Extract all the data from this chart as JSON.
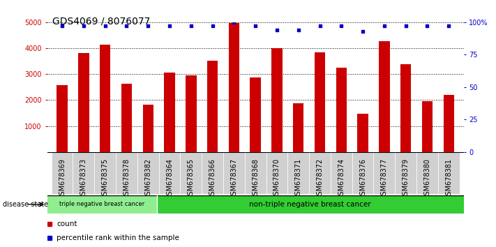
{
  "title": "GDS4069 / 8076077",
  "categories": [
    "GSM678369",
    "GSM678373",
    "GSM678375",
    "GSM678378",
    "GSM678382",
    "GSM678364",
    "GSM678365",
    "GSM678366",
    "GSM678367",
    "GSM678368",
    "GSM678370",
    "GSM678371",
    "GSM678372",
    "GSM678374",
    "GSM678376",
    "GSM678377",
    "GSM678379",
    "GSM678380",
    "GSM678381"
  ],
  "bar_values": [
    2580,
    3800,
    4130,
    2620,
    1820,
    3060,
    2960,
    3520,
    4960,
    2880,
    4000,
    1870,
    3840,
    3250,
    1470,
    4280,
    3380,
    1960,
    2190
  ],
  "percentile_values": [
    97,
    97,
    97,
    97,
    97,
    97,
    97,
    97,
    100,
    97,
    94,
    94,
    97,
    97,
    93,
    97,
    97,
    97,
    97
  ],
  "bar_color": "#cc0000",
  "percentile_color": "#0000cc",
  "ylim_left": [
    0,
    5000
  ],
  "ylim_right": [
    0,
    100
  ],
  "yticks_left": [
    1000,
    2000,
    3000,
    4000,
    5000
  ],
  "yticks_right": [
    0,
    25,
    50,
    75,
    100
  ],
  "ytick_labels_right": [
    "0",
    "25",
    "50",
    "75",
    "100%"
  ],
  "group1_label": "triple negative breast cancer",
  "group2_label": "non-triple negative breast cancer",
  "group1_count": 5,
  "group2_count": 14,
  "group1_color": "#90ee90",
  "group2_color": "#33cc33",
  "disease_state_label": "disease state",
  "legend_count_label": "count",
  "legend_percentile_label": "percentile rank within the sample",
  "bar_width": 0.5,
  "background_color": "#ffffff",
  "axis_bg_color": "#ffffff",
  "cell_bg_color": "#d0d0d0",
  "title_fontsize": 10,
  "tick_fontsize": 7,
  "label_fontsize": 7.5
}
